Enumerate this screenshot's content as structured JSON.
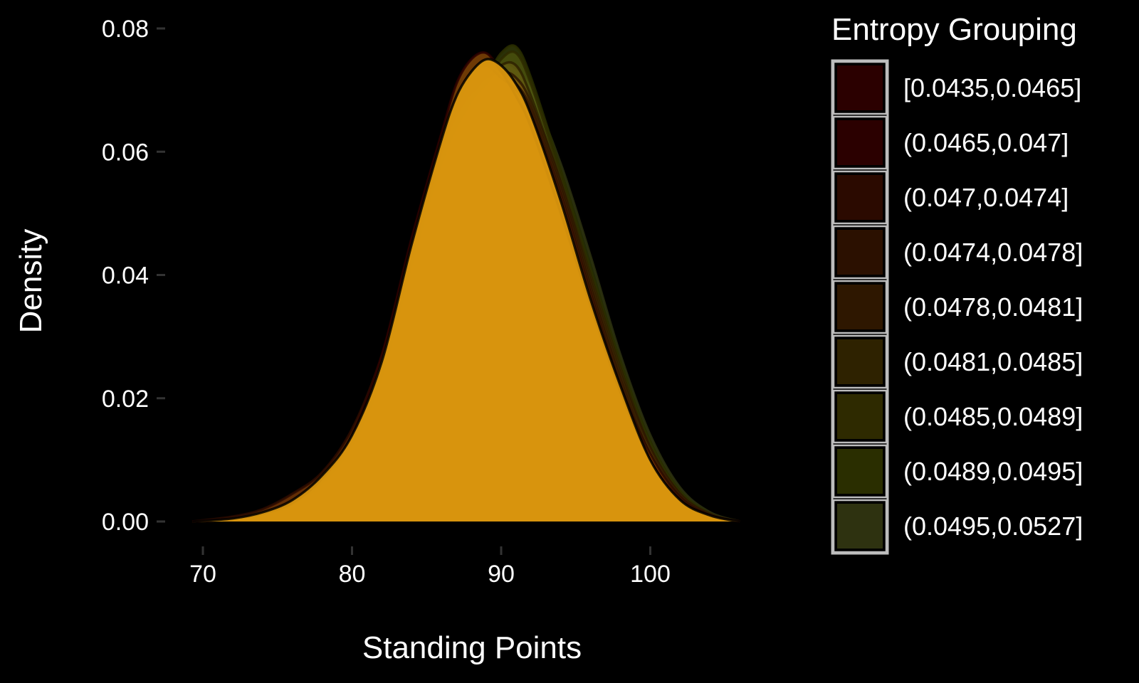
{
  "chart_data": {
    "type": "area",
    "subtype": "density",
    "title": "",
    "xlabel": "Standing Points",
    "ylabel": "Density",
    "xlim": [
      69.3,
      106
    ],
    "ylim": [
      0,
      0.08
    ],
    "x_ticks": [
      70,
      80,
      90,
      100
    ],
    "x_tick_labels": [
      "70",
      "80",
      "90",
      "100"
    ],
    "y_ticks": [
      0,
      0.02,
      0.04,
      0.06,
      0.08
    ],
    "y_tick_labels": [
      "0.00",
      "0.02",
      "0.04",
      "0.06",
      "0.08"
    ],
    "grid": false,
    "legend": {
      "title": "Entropy Grouping",
      "position": "right"
    },
    "background": "#000000",
    "text_color": "#ffffff",
    "series": [
      {
        "name": "[0.0435,0.0465]",
        "fill": "#d9970e",
        "legend_color": "#2b0000",
        "x": [
          69.3,
          72,
          74,
          76,
          78,
          80,
          82,
          84,
          86,
          87,
          88,
          89,
          90,
          91,
          92,
          94,
          96,
          98,
          100,
          102,
          104,
          106
        ],
        "y": [
          0,
          0.0005,
          0.0015,
          0.0035,
          0.0075,
          0.014,
          0.026,
          0.045,
          0.062,
          0.069,
          0.073,
          0.075,
          0.074,
          0.071,
          0.066,
          0.052,
          0.036,
          0.022,
          0.01,
          0.0035,
          0.001,
          0
        ]
      },
      {
        "name": "(0.0465,0.047]",
        "fill": "#c86a0a",
        "legend_color": "#2b0000",
        "x": [
          69.3,
          72,
          74,
          76,
          78,
          80,
          82,
          84,
          86,
          87,
          88,
          89,
          90,
          91,
          92,
          94,
          96,
          98,
          100,
          102,
          104,
          106
        ],
        "y": [
          0,
          0.0004,
          0.0013,
          0.003,
          0.007,
          0.014,
          0.027,
          0.046,
          0.063,
          0.071,
          0.075,
          0.076,
          0.073,
          0.069,
          0.064,
          0.05,
          0.035,
          0.021,
          0.01,
          0.0035,
          0.001,
          0
        ]
      },
      {
        "name": "(0.047,0.0474]",
        "fill": "#b5530a",
        "legend_color": "#2b0a00",
        "x": [
          69.3,
          72,
          74,
          76,
          78,
          80,
          82,
          84,
          86,
          87,
          88,
          89,
          90,
          91,
          92,
          94,
          96,
          98,
          100,
          102,
          104,
          106
        ],
        "y": [
          0,
          0.0008,
          0.002,
          0.0045,
          0.008,
          0.015,
          0.027,
          0.045,
          0.061,
          0.069,
          0.073,
          0.074,
          0.072,
          0.07,
          0.066,
          0.053,
          0.037,
          0.022,
          0.011,
          0.004,
          0.001,
          0
        ]
      },
      {
        "name": "(0.0474,0.0478]",
        "fill": "#a34a0a",
        "legend_color": "#2b1000",
        "x": [
          69.3,
          72,
          74,
          76,
          78,
          80,
          82,
          84,
          86,
          87,
          88,
          89,
          90,
          91,
          92,
          94,
          96,
          98,
          100,
          102,
          104,
          106
        ],
        "y": [
          0,
          0.0005,
          0.0015,
          0.0035,
          0.0075,
          0.014,
          0.026,
          0.044,
          0.06,
          0.067,
          0.072,
          0.074,
          0.073,
          0.071,
          0.067,
          0.054,
          0.038,
          0.023,
          0.011,
          0.004,
          0.001,
          0
        ]
      },
      {
        "name": "(0.0478,0.0481]",
        "fill": "#8a5a0c",
        "legend_color": "#2e1700",
        "x": [
          69.3,
          72,
          74,
          76,
          78,
          80,
          82,
          84,
          86,
          87,
          88,
          89,
          90,
          91,
          92,
          94,
          96,
          98,
          100,
          102,
          104,
          106
        ],
        "y": [
          0,
          0.0004,
          0.0012,
          0.003,
          0.007,
          0.013,
          0.025,
          0.043,
          0.06,
          0.066,
          0.07,
          0.072,
          0.073,
          0.072,
          0.068,
          0.055,
          0.039,
          0.024,
          0.012,
          0.0045,
          0.0012,
          0
        ]
      },
      {
        "name": "(0.0481,0.0485]",
        "fill": "#6e5c10",
        "legend_color": "#2e2200",
        "x": [
          69.3,
          72,
          74,
          76,
          78,
          80,
          82,
          84,
          86,
          87,
          88,
          89,
          90,
          91,
          92,
          94,
          96,
          98,
          100,
          102,
          104,
          106
        ],
        "y": [
          0,
          0.0003,
          0.001,
          0.0028,
          0.0065,
          0.0125,
          0.024,
          0.042,
          0.059,
          0.065,
          0.069,
          0.071,
          0.074,
          0.074,
          0.069,
          0.055,
          0.04,
          0.025,
          0.012,
          0.0045,
          0.0012,
          0
        ]
      },
      {
        "name": "(0.0485,0.0489]",
        "fill": "#5a6010",
        "legend_color": "#2e2a00",
        "x": [
          69.3,
          72,
          74,
          76,
          78,
          80,
          82,
          84,
          86,
          87,
          88,
          89,
          90,
          91,
          92,
          94,
          96,
          98,
          100,
          102,
          104,
          106
        ],
        "y": [
          0,
          0.0003,
          0.001,
          0.0026,
          0.006,
          0.012,
          0.023,
          0.041,
          0.058,
          0.064,
          0.068,
          0.071,
          0.075,
          0.076,
          0.071,
          0.056,
          0.04,
          0.025,
          0.012,
          0.0045,
          0.0012,
          0
        ]
      },
      {
        "name": "(0.0489,0.0495]",
        "fill": "#4c5a0e",
        "legend_color": "#2a2e00",
        "x": [
          69.3,
          72,
          74,
          76,
          78,
          80,
          82,
          84,
          86,
          87,
          88,
          89,
          90,
          91,
          92,
          94,
          96,
          98,
          100,
          102,
          104,
          106
        ],
        "y": [
          0,
          0.0003,
          0.001,
          0.0025,
          0.006,
          0.012,
          0.023,
          0.04,
          0.057,
          0.063,
          0.068,
          0.072,
          0.076,
          0.077,
          0.072,
          0.057,
          0.041,
          0.026,
          0.013,
          0.005,
          0.0013,
          0
        ]
      },
      {
        "name": "(0.0495,0.0527]",
        "fill": "#3f4e10",
        "legend_color": "#2e3210",
        "x": [
          69.3,
          72,
          74,
          76,
          78,
          80,
          82,
          84,
          86,
          87,
          88,
          89,
          90,
          91,
          92,
          94,
          96,
          98,
          100,
          102,
          104,
          106
        ],
        "y": [
          0,
          0.0004,
          0.0012,
          0.0028,
          0.0065,
          0.013,
          0.024,
          0.041,
          0.057,
          0.062,
          0.067,
          0.072,
          0.074,
          0.073,
          0.07,
          0.058,
          0.043,
          0.027,
          0.014,
          0.0055,
          0.0015,
          0
        ]
      }
    ]
  }
}
